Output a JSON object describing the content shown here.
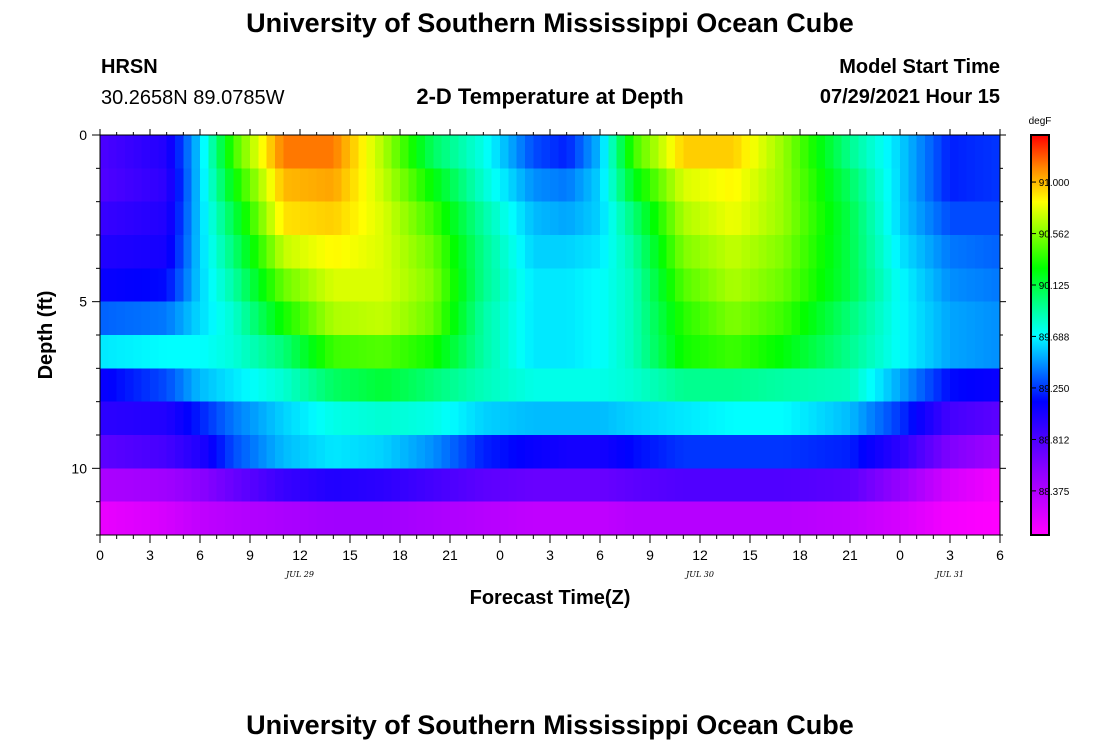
{
  "page": {
    "title_top": "University of Southern Mississippi Ocean Cube",
    "title_bottom": "University of Southern Mississippi Ocean Cube",
    "station": "HRSN",
    "coords": "30.2658N  89.0785W",
    "plot_title": "2-D Temperature at Depth",
    "model_start_label": "Model Start Time",
    "model_start_value": "07/29/2021 Hour 15"
  },
  "chart_data": {
    "type": "heatmap",
    "title": "2-D Temperature at Depth",
    "xlabel": "Forecast Time(Z)",
    "ylabel": "Depth (ft)",
    "x_tick_labels": [
      "0",
      "3",
      "6",
      "9",
      "12",
      "15",
      "18",
      "21",
      "0",
      "3",
      "6",
      "9",
      "12",
      "15",
      "18",
      "21",
      "0",
      "3",
      "6"
    ],
    "x_range_hours": [
      0,
      54
    ],
    "day_labels": [
      {
        "text": "JUL 29",
        "hour": 12
      },
      {
        "text": "JUL 30",
        "hour": 36
      },
      {
        "text": "JUL 31",
        "hour": 51
      }
    ],
    "y_tick_labels": [
      "0",
      "5",
      "10"
    ],
    "y_ticks_ft": [
      0,
      5,
      10
    ],
    "y_range_ft": [
      0,
      12
    ],
    "colorbar": {
      "unit": "degF",
      "tick_labels": [
        "91.000",
        "90.562",
        "90.125",
        "89.688",
        "89.250",
        "88.812",
        "88.375"
      ],
      "range": [
        88.0,
        91.4
      ]
    },
    "depth_layers_ft": [
      0.5,
      1.5,
      2.5,
      3.5,
      4.5,
      5.5,
      6.5,
      7.5,
      8.5,
      9.5,
      10.5,
      11.5
    ],
    "profiles_degF": [
      {
        "hour": 0,
        "temps": [
          88.82,
          88.8,
          88.9,
          89.0,
          89.1,
          89.35,
          89.65,
          89.1,
          88.95,
          88.75,
          88.4,
          88.1
        ]
      },
      {
        "hour": 4,
        "temps": [
          89.0,
          88.95,
          89.0,
          89.05,
          89.15,
          89.4,
          89.7,
          89.3,
          89.0,
          88.85,
          88.45,
          88.2
        ]
      },
      {
        "hour": 6,
        "temps": [
          89.6,
          89.6,
          89.6,
          89.6,
          89.6,
          89.62,
          89.7,
          89.55,
          89.2,
          89.0,
          88.55,
          88.3
        ]
      },
      {
        "hour": 8,
        "temps": [
          90.4,
          90.25,
          90.1,
          90.0,
          89.9,
          89.8,
          89.78,
          89.65,
          89.4,
          89.3,
          88.7,
          88.35
        ]
      },
      {
        "hour": 11,
        "temps": [
          91.15,
          91.0,
          90.9,
          90.7,
          90.5,
          90.3,
          90.0,
          89.8,
          89.6,
          89.55,
          88.9,
          88.4
        ]
      },
      {
        "hour": 14,
        "temps": [
          91.15,
          91.05,
          90.95,
          90.85,
          90.75,
          90.65,
          90.4,
          90.05,
          89.75,
          89.65,
          89.0,
          88.45
        ]
      },
      {
        "hour": 17,
        "temps": [
          90.65,
          90.7,
          90.75,
          90.75,
          90.75,
          90.7,
          90.45,
          90.15,
          89.8,
          89.6,
          88.95,
          88.45
        ]
      },
      {
        "hour": 20,
        "temps": [
          90.05,
          90.25,
          90.4,
          90.5,
          90.55,
          90.5,
          90.3,
          90.0,
          89.75,
          89.45,
          88.85,
          88.4
        ]
      },
      {
        "hour": 23,
        "temps": [
          89.75,
          89.8,
          89.9,
          89.95,
          89.95,
          89.9,
          89.9,
          89.85,
          89.6,
          89.2,
          88.75,
          88.35
        ]
      },
      {
        "hour": 26,
        "temps": [
          89.3,
          89.45,
          89.55,
          89.6,
          89.65,
          89.65,
          89.65,
          89.75,
          89.55,
          89.1,
          88.7,
          88.3
        ]
      },
      {
        "hour": 28,
        "temps": [
          89.2,
          89.4,
          89.5,
          89.6,
          89.65,
          89.65,
          89.65,
          89.75,
          89.55,
          89.05,
          88.7,
          88.3
        ]
      },
      {
        "hour": 30,
        "temps": [
          89.55,
          89.6,
          89.6,
          89.65,
          89.7,
          89.7,
          89.7,
          89.75,
          89.55,
          89.05,
          88.7,
          88.3
        ]
      },
      {
        "hour": 32,
        "temps": [
          90.4,
          90.2,
          90.0,
          89.9,
          89.85,
          89.85,
          89.85,
          89.8,
          89.6,
          89.15,
          88.75,
          88.35
        ]
      },
      {
        "hour": 35,
        "temps": [
          90.95,
          90.75,
          90.65,
          90.55,
          90.45,
          90.35,
          90.3,
          89.95,
          89.65,
          89.25,
          88.8,
          88.35
        ]
      },
      {
        "hour": 38,
        "temps": [
          90.95,
          90.85,
          90.8,
          90.7,
          90.65,
          90.55,
          90.4,
          89.95,
          89.7,
          89.25,
          88.8,
          88.35
        ]
      },
      {
        "hour": 41,
        "temps": [
          90.6,
          90.6,
          90.6,
          90.55,
          90.5,
          90.4,
          90.25,
          89.9,
          89.7,
          89.25,
          88.8,
          88.35
        ]
      },
      {
        "hour": 45,
        "temps": [
          89.95,
          90.05,
          90.1,
          90.1,
          90.1,
          90.0,
          89.95,
          89.85,
          89.55,
          89.2,
          88.75,
          88.3
        ]
      },
      {
        "hour": 48,
        "temps": [
          89.6,
          89.6,
          89.6,
          89.65,
          89.7,
          89.7,
          89.7,
          89.5,
          89.25,
          88.95,
          88.5,
          88.2
        ]
      },
      {
        "hour": 51,
        "temps": [
          89.2,
          89.2,
          89.3,
          89.4,
          89.45,
          89.5,
          89.5,
          89.15,
          88.85,
          88.6,
          88.2,
          88.05
        ]
      },
      {
        "hour": 54,
        "temps": [
          89.25,
          89.25,
          89.3,
          89.35,
          89.4,
          89.45,
          89.45,
          89.1,
          88.75,
          88.45,
          88.05,
          88.0
        ]
      }
    ]
  }
}
